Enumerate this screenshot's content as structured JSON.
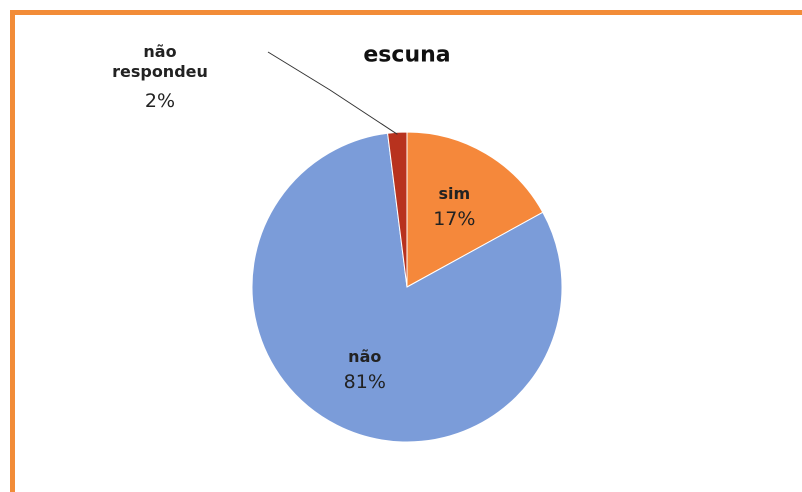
{
  "chart_data": {
    "type": "pie",
    "title": "escuna",
    "categories": [
      "sim",
      "não",
      "não respondeu"
    ],
    "values": [
      17,
      81,
      2
    ],
    "value_labels": [
      "17%",
      "81%",
      "2%"
    ],
    "colors": [
      "#f5883b",
      "#7b9cd9",
      "#b8321e"
    ]
  }
}
